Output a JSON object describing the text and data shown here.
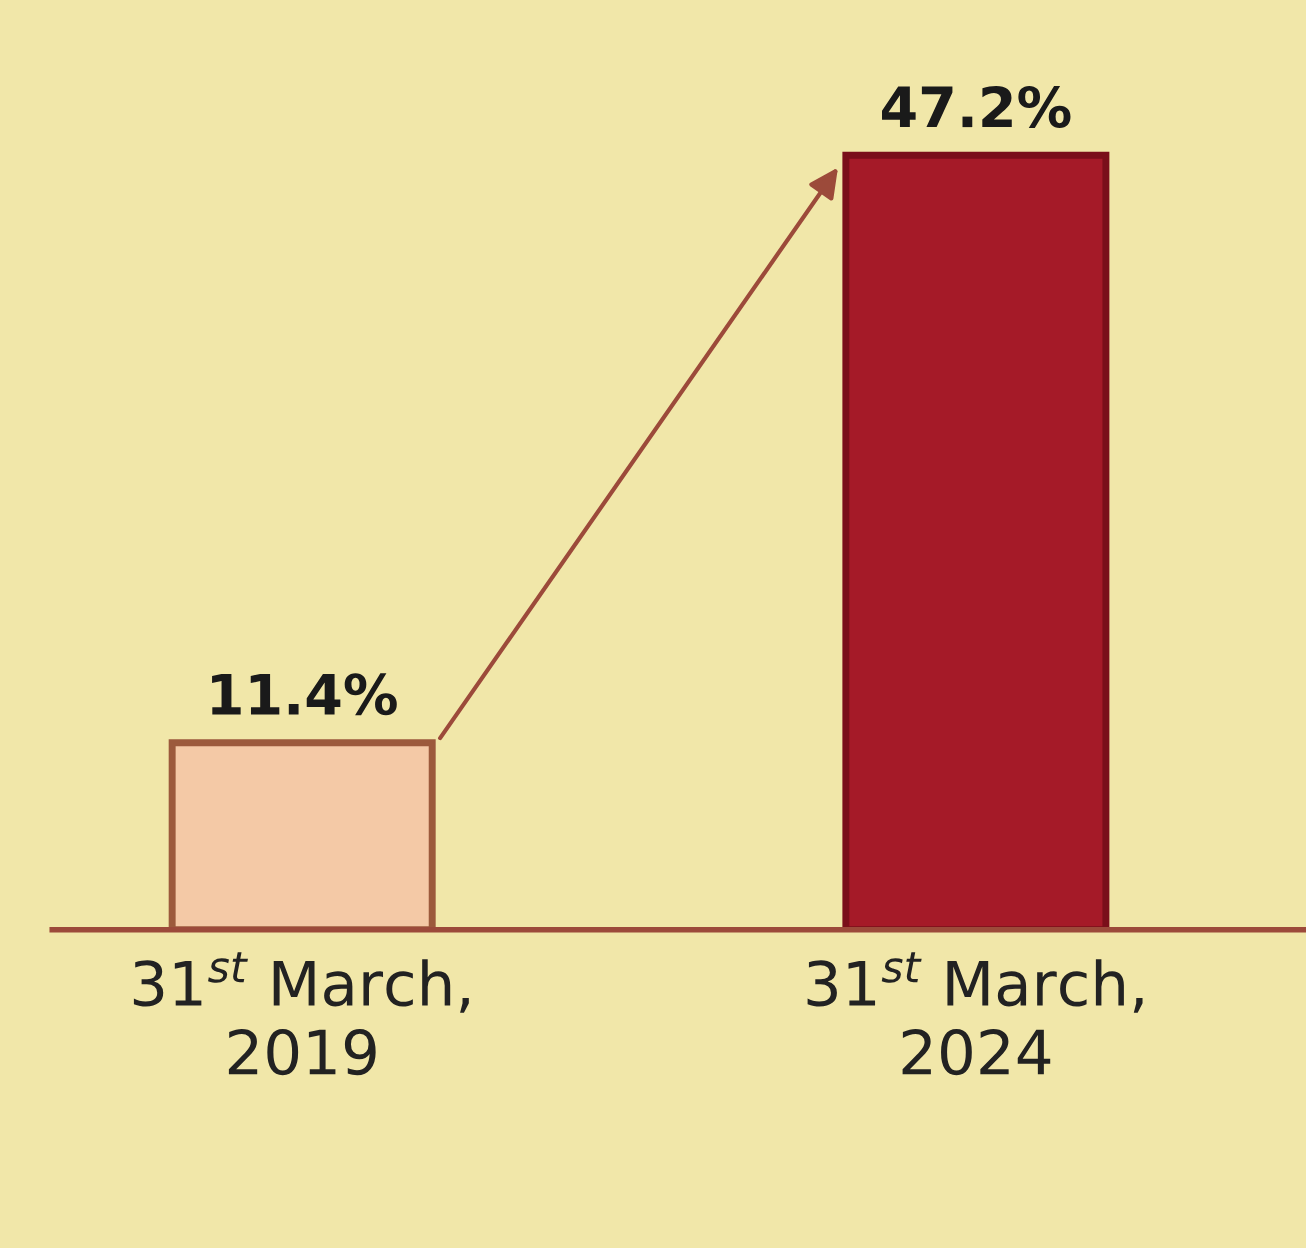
{
  "chart_data": {
    "type": "bar",
    "categories": [
      "31$^{st}$ March,\n2019",
      "31$^{st}$ March,\n2024"
    ],
    "values": [
      11.4,
      47.2
    ],
    "colors": [
      "#f4c9a6",
      "#a51a28"
    ],
    "value_labels": [
      "11.4%",
      "47.2%"
    ],
    "grid": false,
    "legend": false
  }
}
